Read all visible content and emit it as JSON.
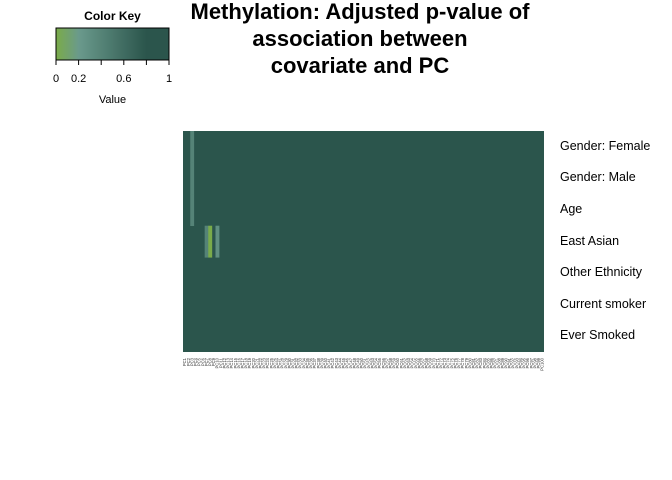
{
  "chart_data": {
    "type": "heatmap",
    "title": [
      "Methylation: Adjusted p-value of",
      "association between",
      "covariate and PC"
    ],
    "rows": [
      "Gender: Female",
      "Gender: Male",
      "Age",
      "East Asian",
      "Other Ethnicity",
      "Current smoker",
      "Ever Smoked"
    ],
    "n_columns": 100,
    "column_labels": [
      "PC1",
      "PC2",
      "PC3",
      "PC4",
      "PC5",
      "PC6",
      "PC7",
      "PC8",
      "PC9",
      "PC10",
      "PC11",
      "PC12",
      "PC13",
      "PC14",
      "PC15",
      "PC16",
      "PC17",
      "PC18",
      "PC19",
      "PC20",
      "PC21",
      "PC22",
      "PC23",
      "PC24",
      "PC25",
      "PC26",
      "PC27",
      "PC28",
      "PC29",
      "PC30",
      "PC31",
      "PC32",
      "PC33",
      "PC34",
      "PC35",
      "PC36",
      "PC37",
      "PC38",
      "PC39",
      "PC40",
      "PC41",
      "PC42",
      "PC43",
      "PC44",
      "PC45",
      "PC46",
      "PC47",
      "PC48",
      "PC49",
      "PC50",
      "PC51",
      "PC52",
      "PC53",
      "PC54",
      "PC55",
      "PC56",
      "PC57",
      "PC58",
      "PC59",
      "PC60",
      "PC61",
      "PC62",
      "PC63",
      "PC64",
      "PC65",
      "PC66",
      "PC67",
      "PC68",
      "PC69",
      "PC70",
      "PC71",
      "PC72",
      "PC73",
      "PC74",
      "PC75",
      "PC76",
      "PC77",
      "PC78",
      "PC79",
      "PC80",
      "PC81",
      "PC82",
      "PC83",
      "PC84",
      "PC85",
      "PC86",
      "PC87",
      "PC88",
      "PC89",
      "PC90",
      "PC91",
      "PC92",
      "PC93",
      "PC94",
      "PC95",
      "PC96",
      "PC97",
      "PC98",
      "PC99",
      "PC100"
    ],
    "default_value": 1,
    "nonunit_cells": [
      {
        "row": 0,
        "col": 2,
        "value": 0.4
      },
      {
        "row": 1,
        "col": 2,
        "value": 0.4
      },
      {
        "row": 2,
        "col": 2,
        "value": 0.4
      },
      {
        "row": 3,
        "col": 6,
        "value": 0.4
      },
      {
        "row": 3,
        "col": 7,
        "value": 0.0
      },
      {
        "row": 3,
        "col": 9,
        "value": 0.3
      }
    ],
    "color_scale": {
      "low": "#7aab4a",
      "mid": "#6a9a8c",
      "high": "#2b554c"
    },
    "key": {
      "title": "Color Key",
      "xlabel": "Value",
      "ticks": [
        0,
        0.2,
        0.6,
        1
      ],
      "tick_labels": [
        "0",
        "0.2",
        "0.6",
        "1"
      ],
      "range": [
        0,
        1
      ]
    }
  }
}
